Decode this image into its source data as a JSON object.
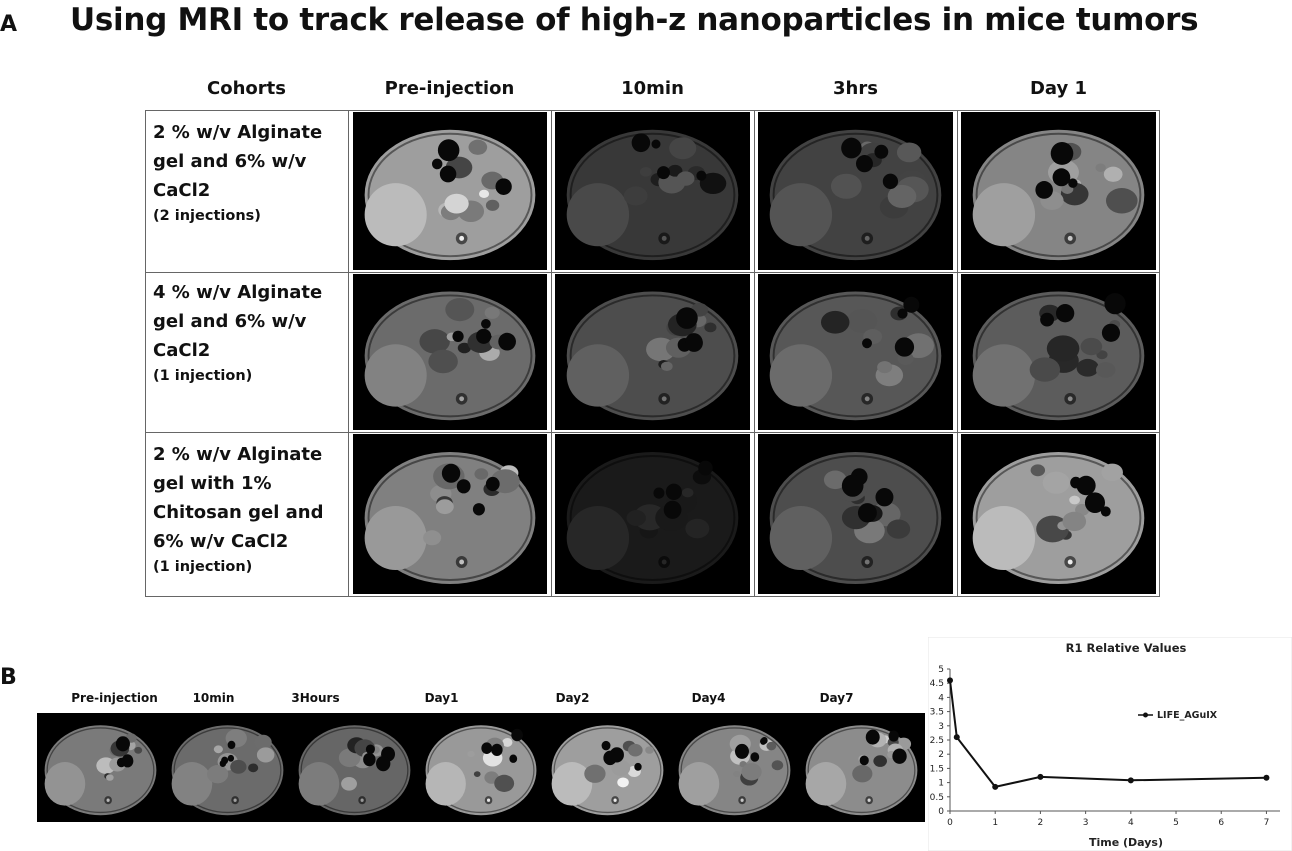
{
  "figure": {
    "panel_a_label": "A",
    "panel_b_label": "B",
    "title": "Using MRI to track release of high-z nanoparticles in mice tumors"
  },
  "panel_a": {
    "column_headers": [
      "Cohorts",
      "Pre-injection",
      "10min",
      "3hrs",
      "Day 1"
    ],
    "rows": [
      {
        "lines": [
          "2 % w/v Alginate",
          "gel and 6% w/v",
          "CaCl2"
        ],
        "note": "(2 injections)",
        "brightness": [
          0.62,
          0.22,
          0.26,
          0.52
        ]
      },
      {
        "lines": [
          "4 % w/v Alginate",
          "gel and 6% w/v",
          "CaCl2"
        ],
        "note": "(1 injection)",
        "brightness": [
          0.42,
          0.3,
          0.34,
          0.36
        ]
      },
      {
        "lines": [
          "2 % w/v Alginate",
          "gel with 1%",
          "Chitosan gel and",
          "6% w/v CaCl2"
        ],
        "note": "(1 injection)",
        "brightness": [
          0.5,
          0.1,
          0.3,
          0.62
        ]
      }
    ]
  },
  "panel_b": {
    "timepoints": [
      "Pre-injection",
      "10min",
      "3Hours",
      "Day1",
      "Day2",
      "Day4",
      "Day7"
    ],
    "brightness": [
      0.48,
      0.42,
      0.4,
      0.6,
      0.62,
      0.52,
      0.55
    ]
  },
  "chart_data": {
    "type": "line",
    "title": "R1 Relative Values",
    "xlabel": "Time (Days)",
    "ylabel": "",
    "xlim": [
      0,
      7.3
    ],
    "ylim": [
      0,
      5
    ],
    "x_ticks": [
      0,
      1,
      2,
      3,
      4,
      5,
      6,
      7
    ],
    "y_ticks": [
      "0",
      "0.5",
      "1",
      "1.5",
      "2",
      "2.5",
      "3",
      "3.5",
      "4",
      "4.5",
      "5"
    ],
    "legend_position": "top-right",
    "grid": false,
    "series": [
      {
        "name": "LIFE_AGuIX",
        "color": "#111111",
        "x": [
          0,
          0.15,
          1,
          2,
          4,
          7
        ],
        "y": [
          4.6,
          2.6,
          0.85,
          1.2,
          1.08,
          1.17
        ]
      }
    ]
  }
}
